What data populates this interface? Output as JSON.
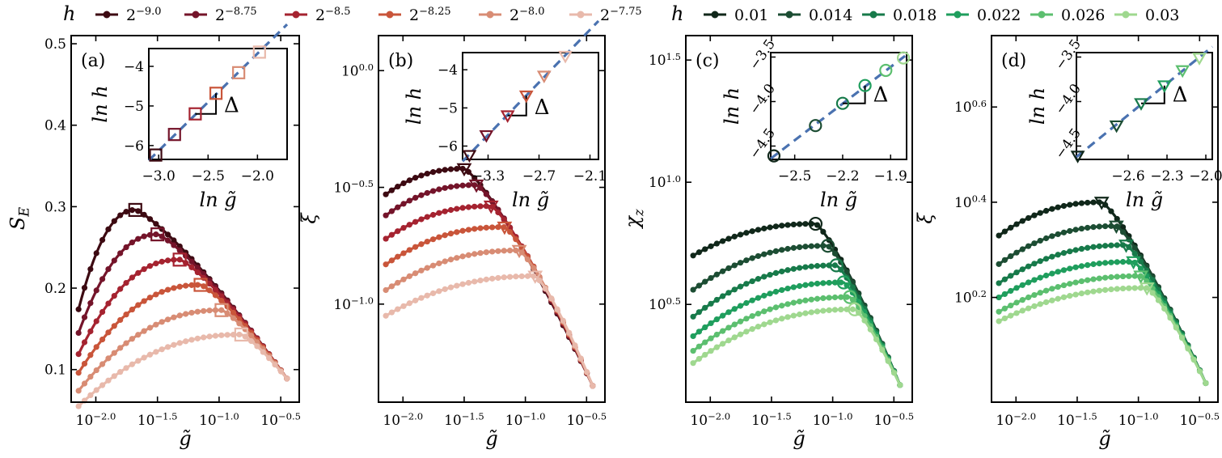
{
  "legends": [
    {
      "symbol": "h",
      "entries": [
        "2^{-9.0}",
        "2^{-8.75}",
        "2^{-8.5}",
        "2^{-8.25}",
        "2^{-8.0}",
        "2^{-7.75}"
      ],
      "colors": [
        "#3d0a12",
        "#74142a",
        "#a52330",
        "#c9553a",
        "#d88c74",
        "#e8b9ab"
      ]
    },
    {
      "symbol": "h",
      "entries": [
        "0.01",
        "0.014",
        "0.018",
        "0.022",
        "0.026",
        "0.03"
      ],
      "colors": [
        "#10271a",
        "#1c4d33",
        "#177a4a",
        "#1f9e5d",
        "#5cbf6f",
        "#9fd88f"
      ]
    }
  ],
  "chart_data": [
    {
      "type": "line",
      "panel": "(a)",
      "ylabel": "S_E",
      "xlabel": "g̃",
      "xscale": "log10",
      "xlim": [
        -2.2,
        -0.35
      ],
      "ylim": [
        0.06,
        0.51
      ],
      "yticks": [
        "0.1",
        "0.2",
        "0.3",
        "0.4",
        "0.5"
      ],
      "xticks": [
        "10^{-2.0}",
        "10^{-1.5}",
        "10^{-1.0}",
        "10^{-0.5}"
      ],
      "marker": "square",
      "series": [
        {
          "name": "2^{-9.0}",
          "start": 0.174,
          "peak_x": -1.68,
          "peak_y": 0.296,
          "end": 0.089
        },
        {
          "name": "2^{-8.75}",
          "start": 0.145,
          "peak_x": -1.5,
          "peak_y": 0.266,
          "end": 0.089
        },
        {
          "name": "2^{-8.5}",
          "start": 0.119,
          "peak_x": -1.32,
          "peak_y": 0.235,
          "end": 0.089
        },
        {
          "name": "2^{-8.25}",
          "start": 0.096,
          "peak_x": -1.15,
          "peak_y": 0.204,
          "end": 0.089
        },
        {
          "name": "2^{-8.0}",
          "start": 0.074,
          "peak_x": -0.98,
          "peak_y": 0.173,
          "end": 0.089
        },
        {
          "name": "2^{-7.75}",
          "start": 0.055,
          "peak_x": -0.82,
          "peak_y": 0.143,
          "end": 0.089
        }
      ],
      "inset": {
        "xlabel": "ln g̃",
        "ylabel": "ln h",
        "annotation": "Δ",
        "xticks": [
          "−3.0",
          "−2.5",
          "−2.0"
        ],
        "yticks": [
          "−4",
          "−5",
          "−6"
        ],
        "points_x": [
          -3.03,
          -2.84,
          -2.63,
          -2.42,
          -2.19,
          -1.98
        ],
        "points_y": [
          -6.24,
          -5.72,
          -5.2,
          -4.68,
          -4.16,
          -3.64
        ]
      }
    },
    {
      "type": "line",
      "panel": "(b)",
      "ylabel": "ξ",
      "xlabel": "g̃",
      "xscale": "log10",
      "yscale": "log10",
      "yticks": [
        "10^{0.0}",
        "10^{-0.5}",
        "10^{-1.0}"
      ],
      "xticks": [
        "10^{-2.0}",
        "10^{-1.5}",
        "10^{-1.0}",
        "10^{-0.5}"
      ],
      "marker": "triangle-down",
      "series": [
        {
          "name": "2^{-9.0}",
          "start": -0.53,
          "peak_x": -1.5,
          "peak_y": -0.42,
          "end": -1.35
        },
        {
          "name": "2^{-8.75}",
          "start": -0.62,
          "peak_x": -1.4,
          "peak_y": -0.49,
          "end": -1.35
        },
        {
          "name": "2^{-8.5}",
          "start": -0.72,
          "peak_x": -1.28,
          "peak_y": -0.58,
          "end": -1.35
        },
        {
          "name": "2^{-8.25}",
          "start": -0.83,
          "peak_x": -1.17,
          "peak_y": -0.67,
          "end": -1.35
        },
        {
          "name": "2^{-8.0}",
          "start": -0.94,
          "peak_x": -1.05,
          "peak_y": -0.77,
          "end": -1.35
        },
        {
          "name": "2^{-7.75}",
          "start": -1.05,
          "peak_x": -0.92,
          "peak_y": -0.88,
          "end": -1.35
        }
      ],
      "inset": {
        "xlabel": "ln g̃",
        "ylabel": "ln h",
        "annotation": "Δ",
        "xticks": [
          "−3.3",
          "−2.7",
          "−2.1"
        ],
        "yticks": [
          "−4",
          "−5",
          "−6"
        ],
        "points_x": [
          -3.52,
          -3.32,
          -3.07,
          -2.85,
          -2.64,
          -2.39
        ],
        "points_y": [
          -6.24,
          -5.72,
          -5.2,
          -4.68,
          -4.16,
          -3.64
        ]
      }
    },
    {
      "type": "line",
      "panel": "(c)",
      "ylabel": "χ_z",
      "xlabel": "g̃",
      "xscale": "log10",
      "yscale": "log10",
      "yticks": [
        "10^{1.5}",
        "10^{1.0}",
        "10^{0.5}"
      ],
      "xticks": [
        "10^{-2.0}",
        "10^{-1.5}",
        "10^{-1.0}",
        "10^{-0.5}"
      ],
      "marker": "circle",
      "series": [
        {
          "name": "0.01",
          "start": 0.7,
          "peak_x": -1.14,
          "peak_y": 0.83,
          "end": 0.17
        },
        {
          "name": "0.014",
          "start": 0.56,
          "peak_x": -1.04,
          "peak_y": 0.74,
          "end": 0.17
        },
        {
          "name": "0.018",
          "start": 0.45,
          "peak_x": -0.97,
          "peak_y": 0.66,
          "end": 0.17
        },
        {
          "name": "0.022",
          "start": 0.37,
          "peak_x": -0.91,
          "peak_y": 0.59,
          "end": 0.17
        },
        {
          "name": "0.026",
          "start": 0.31,
          "peak_x": -0.86,
          "peak_y": 0.53,
          "end": 0.17
        },
        {
          "name": "0.03",
          "start": 0.26,
          "peak_x": -0.82,
          "peak_y": 0.48,
          "end": 0.17
        }
      ],
      "inset": {
        "xlabel": "ln g̃",
        "ylabel": "ln h",
        "annotation": "Δ",
        "xticks": [
          "−2.5",
          "−2.2",
          "−1.9"
        ],
        "yticks": [
          "−3.5",
          "−4.0",
          "−4.5"
        ],
        "points_x": [
          -2.63,
          -2.37,
          -2.2,
          -2.06,
          -1.93,
          -1.82
        ],
        "points_y": [
          -4.61,
          -4.27,
          -4.02,
          -3.82,
          -3.65,
          -3.51
        ]
      }
    },
    {
      "type": "line",
      "panel": "(d)",
      "ylabel": "ξ",
      "xlabel": "g̃",
      "xscale": "log10",
      "yscale": "log10",
      "yticks": [
        "10^{0.6}",
        "10^{0.4}",
        "10^{0.2}"
      ],
      "xticks": [
        "10^{-2.0}",
        "10^{-1.5}",
        "10^{-1.0}",
        "10^{-0.5}"
      ],
      "marker": "triangle-down",
      "series": [
        {
          "name": "0.01",
          "start": 0.33,
          "peak_x": -1.3,
          "peak_y": 0.4,
          "end": 0.02
        },
        {
          "name": "0.014",
          "start": 0.27,
          "peak_x": -1.18,
          "peak_y": 0.35,
          "end": 0.02
        },
        {
          "name": "0.018",
          "start": 0.23,
          "peak_x": -1.1,
          "peak_y": 0.31,
          "end": 0.02
        },
        {
          "name": "0.022",
          "start": 0.2,
          "peak_x": -1.04,
          "peak_y": 0.275,
          "end": 0.02
        },
        {
          "name": "0.026",
          "start": 0.17,
          "peak_x": -0.98,
          "peak_y": 0.245,
          "end": 0.02
        },
        {
          "name": "0.03",
          "start": 0.15,
          "peak_x": -0.93,
          "peak_y": 0.22,
          "end": 0.02
        }
      ],
      "inset": {
        "xlabel": "ln g̃",
        "ylabel": "ln h",
        "annotation": "Δ",
        "xticks": [
          "−2.6",
          "−2.3",
          "−2.0"
        ],
        "yticks": [
          "−3.5",
          "−4.0",
          "−4.5"
        ],
        "points_x": [
          -2.99,
          -2.69,
          -2.5,
          -2.32,
          -2.18,
          -2.05
        ],
        "points_y": [
          -4.61,
          -4.27,
          -4.02,
          -3.82,
          -3.65,
          -3.51
        ]
      }
    }
  ]
}
